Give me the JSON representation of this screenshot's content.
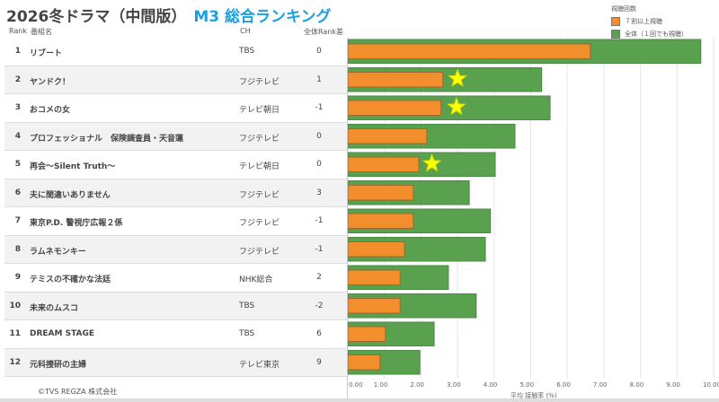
{
  "header": {
    "title": "2026冬ドラマ（中間版）",
    "subtitle": "M3 総合ランキング"
  },
  "columns": {
    "rank": "Rank",
    "name": "番組名",
    "ch": "CH",
    "diff": "全体Rank差"
  },
  "legend": {
    "title": "視聴回数",
    "items": [
      {
        "label": "７割以上視聴",
        "color": "#f28e2b"
      },
      {
        "label": "全体（１回でも視聴）",
        "color": "#59a14f"
      }
    ]
  },
  "footer": {
    "copyright": "©TVS REGZA 株式会社"
  },
  "chart_data": {
    "type": "bar",
    "xlabel": "平均 接触率 (%)",
    "xlim": [
      0,
      10
    ],
    "ticks": [
      "0.00",
      "1.00",
      "2.00",
      "3.00",
      "4.00",
      "5.00",
      "6.00",
      "7.00",
      "8.00",
      "9.00",
      "10.00"
    ],
    "grid": true,
    "legend_position": "top-right",
    "rows": [
      {
        "rank": "1",
        "name": "リブート",
        "ch": "TBS",
        "diff": "0",
        "all": 9.65,
        "over70": 6.63,
        "star": null
      },
      {
        "rank": "2",
        "name": "ヤンドク！",
        "ch": "フジテレビ",
        "diff": "1",
        "all": 5.3,
        "over70": 2.6,
        "star": 3.0
      },
      {
        "rank": "3",
        "name": "おコメの女",
        "ch": "テレビ朝日",
        "diff": "-1",
        "all": 5.53,
        "over70": 2.55,
        "star": 2.97
      },
      {
        "rank": "4",
        "name": "プロフェッショナル　保険調査員・天音蓮",
        "ch": "フジテレビ",
        "diff": "0",
        "all": 4.57,
        "over70": 2.16,
        "star": null
      },
      {
        "rank": "5",
        "name": "再会～Silent Truth～",
        "ch": "テレビ朝日",
        "diff": "0",
        "all": 4.03,
        "over70": 1.94,
        "star": 2.3
      },
      {
        "rank": "6",
        "name": "夫に間違いありません",
        "ch": "フジテレビ",
        "diff": "3",
        "all": 3.32,
        "over70": 1.79,
        "star": null
      },
      {
        "rank": "7",
        "name": "東京P.D. 警視庁広報２係",
        "ch": "フジテレビ",
        "diff": "-1",
        "all": 3.9,
        "over70": 1.79,
        "star": null
      },
      {
        "rank": "8",
        "name": "ラムネモンキー",
        "ch": "フジテレビ",
        "diff": "-1",
        "all": 3.76,
        "over70": 1.55,
        "star": null
      },
      {
        "rank": "9",
        "name": "テミスの不確かな法廷",
        "ch": "NHK総合",
        "diff": "2",
        "all": 2.75,
        "over70": 1.43,
        "star": null
      },
      {
        "rank": "10",
        "name": "未来のムスコ",
        "ch": "TBS",
        "diff": "-2",
        "all": 3.51,
        "over70": 1.43,
        "star": null
      },
      {
        "rank": "11",
        "name": "DREAM STAGE",
        "ch": "TBS",
        "diff": "6",
        "all": 2.36,
        "over70": 1.03,
        "star": null
      },
      {
        "rank": "12",
        "name": "元科捜研の主婦",
        "ch": "テレビ東京",
        "diff": "9",
        "all": 1.97,
        "over70": 0.88,
        "star": null
      }
    ]
  }
}
